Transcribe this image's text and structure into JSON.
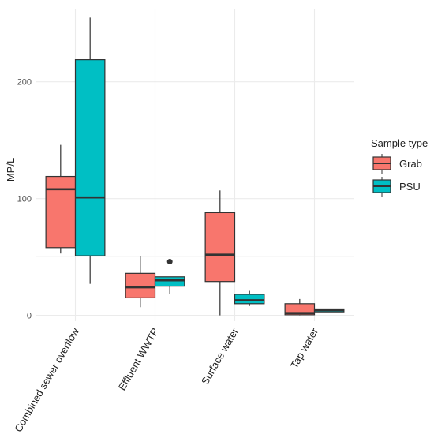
{
  "chart_data": {
    "type": "boxplot",
    "ylabel": "MP/L",
    "xlabel": "",
    "ylim": [
      -5,
      262
    ],
    "y_ticks": [
      0,
      100,
      200
    ],
    "categories": [
      "Combined sewer overflow",
      "Effluent WWTP",
      "Surface water",
      "Tap water"
    ],
    "legend": {
      "title": "Sample type",
      "placement": "right"
    },
    "series": [
      {
        "name": "Grab",
        "color": "#F8766D",
        "boxes": [
          {
            "category": "Combined sewer overflow",
            "whisker_low": 53,
            "q1": 58,
            "median": 108,
            "q3": 119,
            "whisker_high": 146,
            "outliers": []
          },
          {
            "category": "Effluent WWTP",
            "whisker_low": 7,
            "q1": 15,
            "median": 24,
            "q3": 36,
            "whisker_high": 51,
            "outliers": []
          },
          {
            "category": "Surface water",
            "whisker_low": 0,
            "q1": 29,
            "median": 52,
            "q3": 88,
            "whisker_high": 107,
            "outliers": []
          },
          {
            "category": "Tap water",
            "whisker_low": 0,
            "q1": 0.5,
            "median": 2,
            "q3": 10,
            "whisker_high": 14,
            "outliers": []
          }
        ]
      },
      {
        "name": "PSU",
        "color": "#00BFC4",
        "boxes": [
          {
            "category": "Combined sewer overflow",
            "whisker_low": 27,
            "q1": 51,
            "median": 101,
            "q3": 219,
            "whisker_high": 255,
            "outliers": []
          },
          {
            "category": "Effluent WWTP",
            "whisker_low": 18,
            "q1": 25,
            "median": 30,
            "q3": 33,
            "whisker_high": 33,
            "outliers": [
              46
            ]
          },
          {
            "category": "Surface water",
            "whisker_low": 8,
            "q1": 10,
            "median": 13,
            "q3": 18,
            "whisker_high": 21,
            "outliers": []
          },
          {
            "category": "Tap water",
            "whisker_low": 3,
            "q1": 3,
            "median": 4.5,
            "q3": 5.5,
            "whisker_high": 5.5,
            "outliers": []
          }
        ]
      }
    ]
  }
}
